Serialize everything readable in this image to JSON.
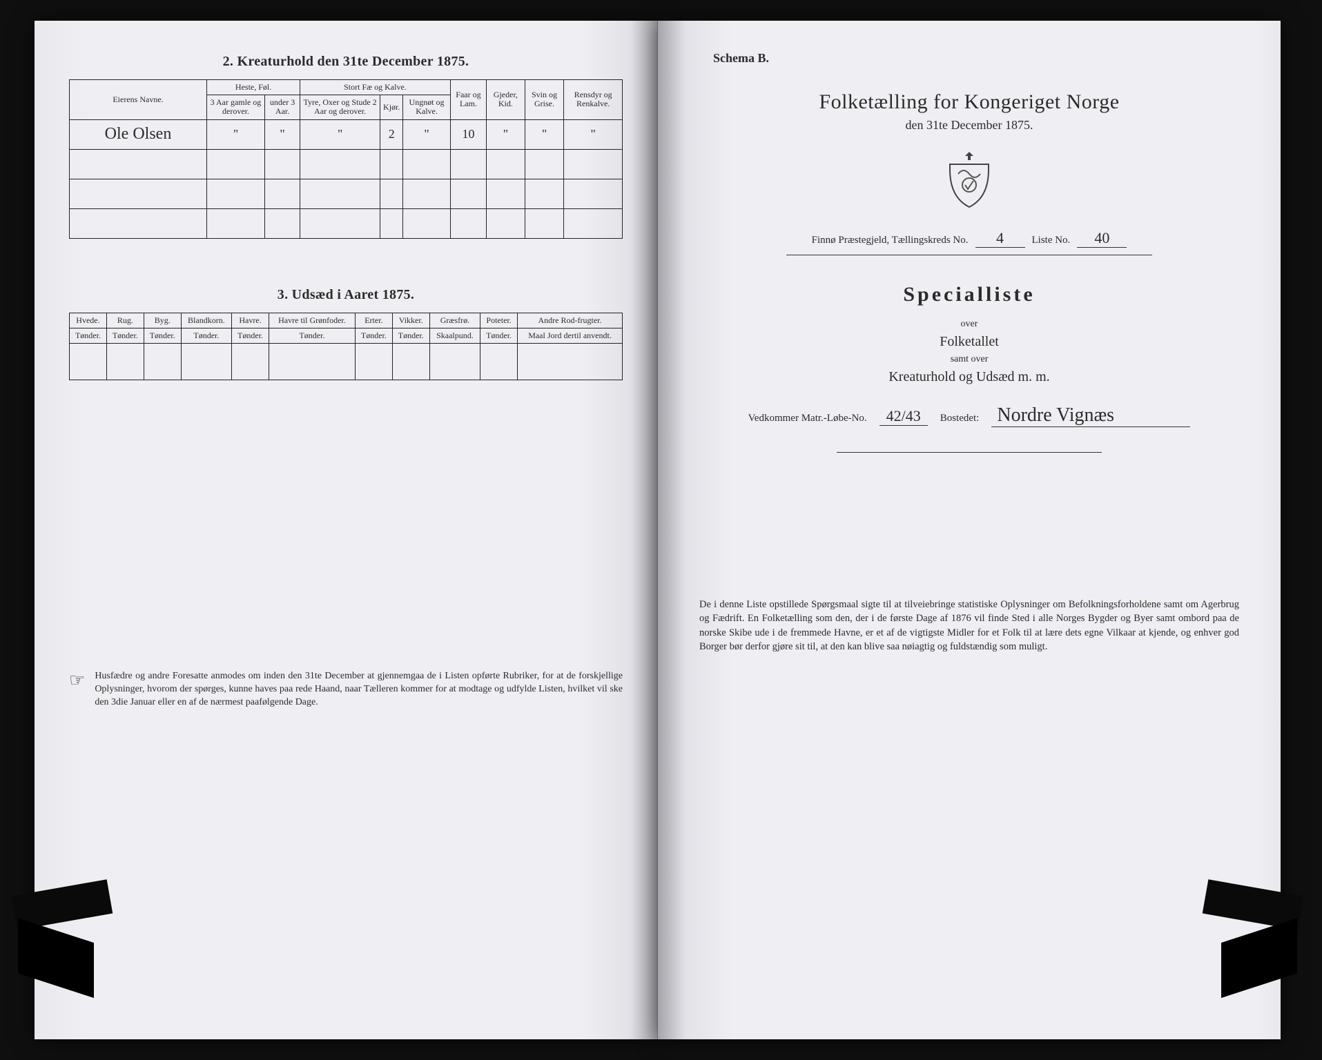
{
  "colors": {
    "paper": "#efeef2",
    "ink": "#2b2b2b",
    "background": "#1a1a1a",
    "border": "#222222"
  },
  "left_page": {
    "section2": {
      "title": "2.  Kreaturhold den 31te December 1875.",
      "columns": {
        "owner": "Eierens Navne.",
        "heste_group": "Heste, Føl.",
        "heste_sub": [
          "3 Aar gamle og derover.",
          "under 3 Aar."
        ],
        "stort_group": "Stort Fæ og Kalve.",
        "stort_sub": [
          "Tyre, Oxer og Stude 2 Aar og derover.",
          "Kjør.",
          "Ungnøt og Kalve."
        ],
        "faar": "Faar og Lam.",
        "gjeder": "Gjeder, Kid.",
        "svin": "Svin og Grise.",
        "rensdyr": "Rensdyr og Renkalve."
      },
      "rows": [
        {
          "owner": "Ole Olsen",
          "cells": [
            "\"",
            "\"",
            "\"",
            "2",
            "\"",
            "10",
            "\"",
            "\"",
            "\""
          ]
        }
      ],
      "blank_rows": 3
    },
    "section3": {
      "title": "3.  Udsæd i Aaret 1875.",
      "columns": [
        {
          "label": "Hvede.",
          "unit": "Tønder."
        },
        {
          "label": "Rug.",
          "unit": "Tønder."
        },
        {
          "label": "Byg.",
          "unit": "Tønder."
        },
        {
          "label": "Blandkorn.",
          "unit": "Tønder."
        },
        {
          "label": "Havre.",
          "unit": "Tønder."
        },
        {
          "label": "Havre til Grønfoder.",
          "unit": "Tønder."
        },
        {
          "label": "Erter.",
          "unit": "Tønder."
        },
        {
          "label": "Vikker.",
          "unit": "Tønder."
        },
        {
          "label": "Græsfrø.",
          "unit": "Skaalpund."
        },
        {
          "label": "Poteter.",
          "unit": "Tønder."
        },
        {
          "label": "Andre Rod-frugter.",
          "unit": "Maal Jord dertil anvendt."
        }
      ],
      "blank_rows": 1
    },
    "footnote": "Husfædre og andre Foresatte anmodes om inden den 31te December at gjennemgaa de i Listen opførte Rubriker, for at de forskjellige Oplysninger, hvorom der spørges, kunne haves paa rede Haand, naar Tælleren kommer for at modtage og udfylde Listen, hvilket vil ske den 3die Januar eller en af de nærmest paafølgende Dage."
  },
  "right_page": {
    "schema": "Schema B.",
    "title": "Folketælling for Kongeriget Norge",
    "date_line": "den 31te December 1875.",
    "district": {
      "prefix": "Finnø Præstegjeld,  Tællingskreds No.",
      "kreds_no": "4",
      "liste_label": "Liste No.",
      "liste_no": "40"
    },
    "special_title": "Specialliste",
    "over1": "over",
    "folketallet": "Folketallet",
    "samt_over": "samt over",
    "kreatur_line": "Kreaturhold og Udsæd m. m.",
    "matr": {
      "label": "Vedkommer Matr.-Løbe-No.",
      "no": "42/43",
      "bosted_label": "Bostedet:",
      "bosted": "Nordre Vignæs"
    },
    "bottom_para": "De i denne Liste opstillede Spørgsmaal sigte til at tilveiebringe statistiske Oplysninger om Befolkningsforholdene samt om Agerbrug og Fædrift.  En Folketælling som den, der i de første Dage af 1876 vil finde Sted i alle Norges Bygder og Byer samt ombord paa de norske Skibe ude i de fremmede Havne, er et af de vigtigste Midler for et Folk til at lære dets egne Vilkaar at kjende, og enhver god Borger bør derfor gjøre sit til, at den kan blive saa nøiagtig og fuldstændig som muligt."
  }
}
